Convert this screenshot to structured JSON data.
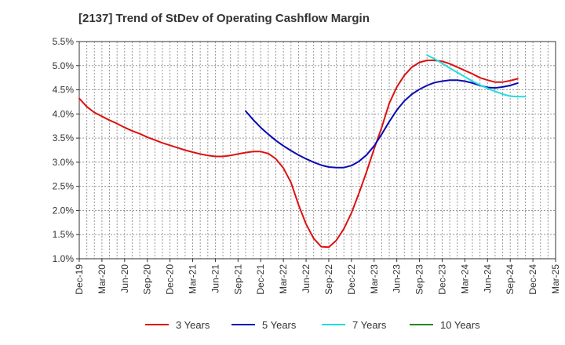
{
  "chart_data": {
    "type": "line",
    "title": "[2137]  Trend of StDev of Operating Cashflow Margin",
    "xlabel": "",
    "ylabel": "",
    "x_range": [
      "2019-12",
      "2025-03"
    ],
    "ylim": [
      1.0,
      5.5
    ],
    "x_ticks": [
      "Dec-19",
      "Mar-20",
      "Jun-20",
      "Sep-20",
      "Dec-20",
      "Mar-21",
      "Jun-21",
      "Sep-21",
      "Dec-21",
      "Mar-22",
      "Jun-22",
      "Sep-22",
      "Dec-22",
      "Mar-23",
      "Jun-23",
      "Sep-23",
      "Dec-23",
      "Mar-24",
      "Jun-24",
      "Sep-24",
      "Dec-24",
      "Mar-25"
    ],
    "y_ticks": [
      "1.0%",
      "1.5%",
      "2.0%",
      "2.5%",
      "3.0%",
      "3.5%",
      "4.0%",
      "4.5%",
      "5.0%",
      "5.5%"
    ],
    "y_tick_values": [
      1.0,
      1.5,
      2.0,
      2.5,
      3.0,
      3.5,
      4.0,
      4.5,
      5.0,
      5.5
    ],
    "grid": true,
    "legend_position": "bottom",
    "series": [
      {
        "name": "3 Years",
        "color": "#dd1111",
        "points": [
          [
            "2019-12",
            4.32
          ],
          [
            "2020-01",
            4.15
          ],
          [
            "2020-02",
            4.03
          ],
          [
            "2020-03",
            3.95
          ],
          [
            "2020-04",
            3.87
          ],
          [
            "2020-05",
            3.8
          ],
          [
            "2020-06",
            3.72
          ],
          [
            "2020-07",
            3.65
          ],
          [
            "2020-08",
            3.59
          ],
          [
            "2020-09",
            3.52
          ],
          [
            "2020-10",
            3.46
          ],
          [
            "2020-11",
            3.4
          ],
          [
            "2020-12",
            3.35
          ],
          [
            "2021-01",
            3.3
          ],
          [
            "2021-02",
            3.25
          ],
          [
            "2021-03",
            3.21
          ],
          [
            "2021-04",
            3.17
          ],
          [
            "2021-05",
            3.14
          ],
          [
            "2021-06",
            3.12
          ],
          [
            "2021-07",
            3.12
          ],
          [
            "2021-08",
            3.14
          ],
          [
            "2021-09",
            3.17
          ],
          [
            "2021-10",
            3.2
          ],
          [
            "2021-11",
            3.22
          ],
          [
            "2021-12",
            3.22
          ],
          [
            "2022-01",
            3.18
          ],
          [
            "2022-02",
            3.07
          ],
          [
            "2022-03",
            2.88
          ],
          [
            "2022-04",
            2.58
          ],
          [
            "2022-05",
            2.12
          ],
          [
            "2022-06",
            1.72
          ],
          [
            "2022-07",
            1.42
          ],
          [
            "2022-08",
            1.25
          ],
          [
            "2022-09",
            1.24
          ],
          [
            "2022-10",
            1.38
          ],
          [
            "2022-11",
            1.62
          ],
          [
            "2022-12",
            1.95
          ],
          [
            "2023-01",
            2.36
          ],
          [
            "2023-02",
            2.8
          ],
          [
            "2023-03",
            3.28
          ],
          [
            "2023-04",
            3.72
          ],
          [
            "2023-05",
            4.22
          ],
          [
            "2023-06",
            4.56
          ],
          [
            "2023-07",
            4.8
          ],
          [
            "2023-08",
            4.97
          ],
          [
            "2023-09",
            5.07
          ],
          [
            "2023-10",
            5.11
          ],
          [
            "2023-11",
            5.11
          ],
          [
            "2023-12",
            5.09
          ],
          [
            "2024-01",
            5.04
          ],
          [
            "2024-02",
            4.97
          ],
          [
            "2024-03",
            4.9
          ],
          [
            "2024-04",
            4.83
          ],
          [
            "2024-05",
            4.75
          ],
          [
            "2024-06",
            4.7
          ],
          [
            "2024-07",
            4.66
          ],
          [
            "2024-08",
            4.66
          ],
          [
            "2024-09",
            4.69
          ],
          [
            "2024-10",
            4.73
          ]
        ]
      },
      {
        "name": "5 Years",
        "color": "#0a0ab4",
        "points": [
          [
            "2021-10",
            4.06
          ],
          [
            "2021-11",
            3.88
          ],
          [
            "2021-12",
            3.72
          ],
          [
            "2022-01",
            3.58
          ],
          [
            "2022-02",
            3.45
          ],
          [
            "2022-03",
            3.34
          ],
          [
            "2022-04",
            3.24
          ],
          [
            "2022-05",
            3.15
          ],
          [
            "2022-06",
            3.07
          ],
          [
            "2022-07",
            3.0
          ],
          [
            "2022-08",
            2.94
          ],
          [
            "2022-09",
            2.9
          ],
          [
            "2022-10",
            2.89
          ],
          [
            "2022-11",
            2.89
          ],
          [
            "2022-12",
            2.93
          ],
          [
            "2023-01",
            3.02
          ],
          [
            "2023-02",
            3.15
          ],
          [
            "2023-03",
            3.34
          ],
          [
            "2023-04",
            3.58
          ],
          [
            "2023-05",
            3.84
          ],
          [
            "2023-06",
            4.08
          ],
          [
            "2023-07",
            4.27
          ],
          [
            "2023-08",
            4.41
          ],
          [
            "2023-09",
            4.51
          ],
          [
            "2023-10",
            4.59
          ],
          [
            "2023-11",
            4.65
          ],
          [
            "2023-12",
            4.68
          ],
          [
            "2024-01",
            4.7
          ],
          [
            "2024-02",
            4.7
          ],
          [
            "2024-03",
            4.68
          ],
          [
            "2024-04",
            4.64
          ],
          [
            "2024-05",
            4.59
          ],
          [
            "2024-06",
            4.55
          ],
          [
            "2024-07",
            4.54
          ],
          [
            "2024-08",
            4.56
          ],
          [
            "2024-09",
            4.59
          ],
          [
            "2024-10",
            4.64
          ]
        ]
      },
      {
        "name": "7 Years",
        "color": "#22dddd",
        "points": [
          [
            "2023-10",
            5.22
          ],
          [
            "2023-11",
            5.14
          ],
          [
            "2023-12",
            5.05
          ],
          [
            "2024-01",
            4.95
          ],
          [
            "2024-02",
            4.86
          ],
          [
            "2024-03",
            4.77
          ],
          [
            "2024-04",
            4.68
          ],
          [
            "2024-05",
            4.6
          ],
          [
            "2024-06",
            4.53
          ],
          [
            "2024-07",
            4.47
          ],
          [
            "2024-08",
            4.41
          ],
          [
            "2024-09",
            4.37
          ],
          [
            "2024-10",
            4.36
          ],
          [
            "2024-11",
            4.36
          ]
        ]
      },
      {
        "name": "10 Years",
        "color": "#228822",
        "points": []
      }
    ]
  }
}
